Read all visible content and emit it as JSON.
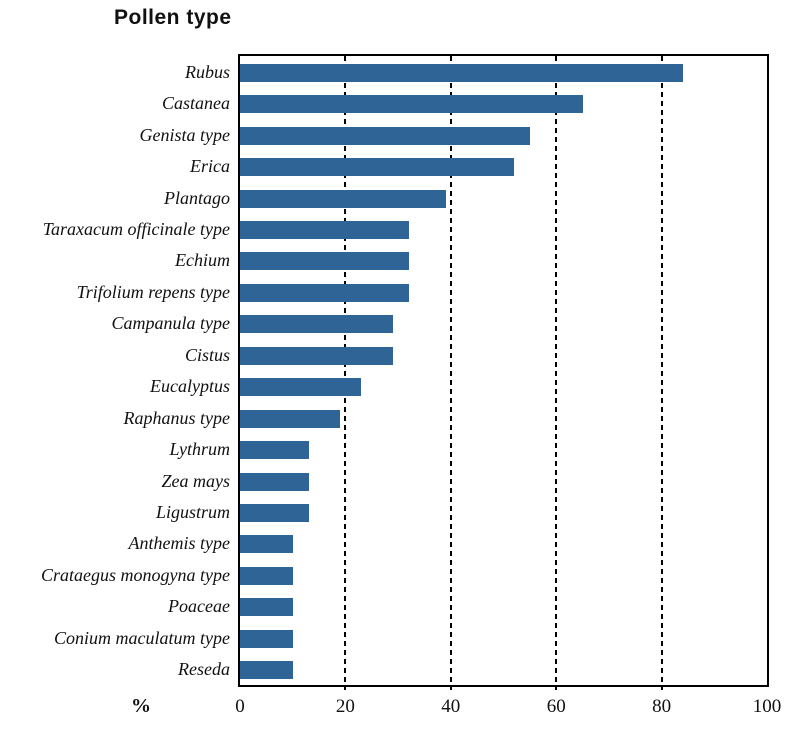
{
  "chart_data": {
    "type": "bar",
    "orientation": "horizontal",
    "title": "Pollen type",
    "xlabel": "%",
    "categories": [
      "Rubus",
      "Castanea",
      "Genista type",
      "Erica",
      "Plantago",
      "Taraxacum officinale type",
      "Echium",
      "Trifolium repens type",
      "Campanula type",
      "Cistus",
      "Eucalyptus",
      "Raphanus type",
      "Lythrum",
      "Zea mays",
      "Ligustrum",
      "Anthemis type",
      "Crataegus monogyna type",
      "Poaceae",
      "Conium maculatum type",
      "Reseda"
    ],
    "values": [
      84,
      65,
      55,
      52,
      39,
      32,
      32,
      32,
      29,
      29,
      23,
      19,
      13,
      13,
      13,
      10,
      10,
      10,
      10,
      10
    ],
    "xlim": [
      0,
      100
    ],
    "xticks": [
      0,
      20,
      40,
      60,
      80,
      100
    ],
    "gridlines": [
      20,
      40,
      60,
      80
    ],
    "grid_style": "dashed-vertical",
    "bar_color": "#2E6496",
    "border_color": "#000000",
    "background_color": "#FFFFFF",
    "legend": "none"
  }
}
